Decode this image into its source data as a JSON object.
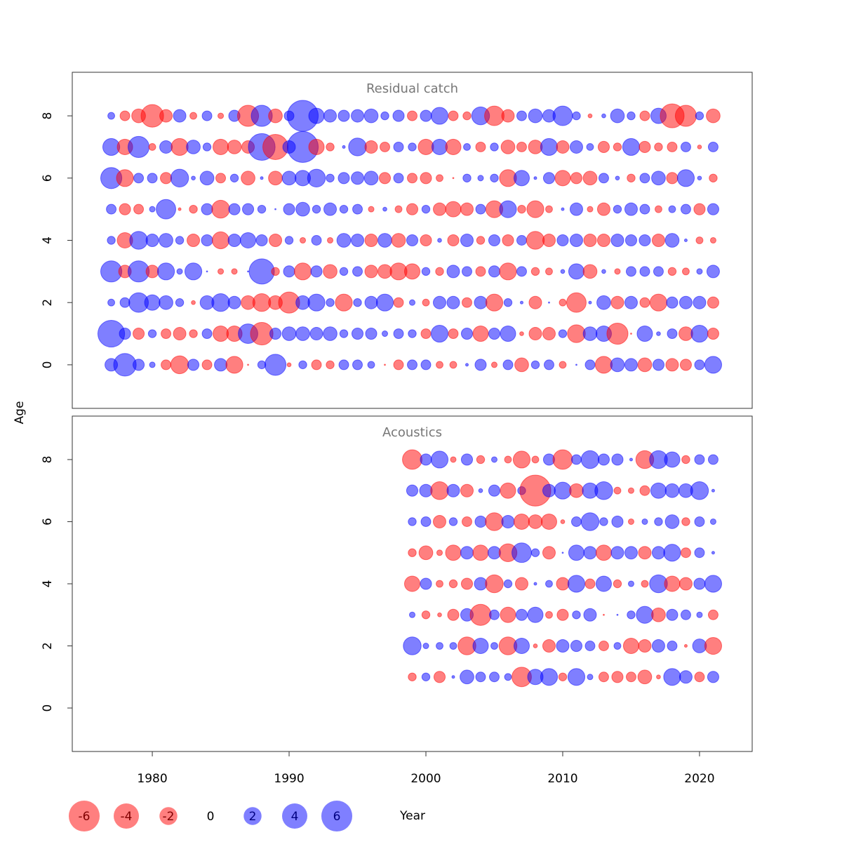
{
  "chart_data": [
    {
      "type": "bubble",
      "title": "Residual catch",
      "ylabel": "Age",
      "xlim": [
        1974.15,
        2023.85
      ],
      "ylim": [
        -1.4,
        9.4
      ],
      "yticks": [
        0,
        2,
        4,
        6,
        8
      ],
      "colors": {
        "negative": "#ff0000",
        "positive": "#0000ff"
      },
      "opacity": 0.5,
      "years": [
        1977,
        1978,
        1979,
        1980,
        1981,
        1982,
        1983,
        1984,
        1985,
        1986,
        1987,
        1988,
        1989,
        1990,
        1991,
        1992,
        1993,
        1994,
        1995,
        1996,
        1997,
        1998,
        1999,
        2000,
        2001,
        2002,
        2003,
        2004,
        2005,
        2006,
        2007,
        2008,
        2009,
        2010,
        2011,
        2012,
        2013,
        2014,
        2015,
        2016,
        2017,
        2018,
        2019,
        2020,
        2021
      ],
      "ages": [
        0,
        1,
        2,
        3,
        4,
        5,
        6,
        7,
        8
      ],
      "values": [
        [
          1,
          3.2,
          0.8,
          0.2,
          -0.6,
          -2,
          0.8,
          -0.6,
          1,
          -1.8,
          -0.01,
          0.4,
          2.8,
          -0.1,
          0.4,
          -0.6,
          -0.4,
          0.6,
          0.6,
          0.3,
          -0.01,
          -0.6,
          0.6,
          0.6,
          -0.3,
          -0.3,
          0.05,
          0.8,
          -0.2,
          0.6,
          -1.2,
          0.4,
          0.6,
          -0.3,
          0.01,
          0.6,
          -1.8,
          1.2,
          1,
          -1.2,
          0.8,
          -1,
          -0.8,
          0.6,
          1.8
        ],
        [
          4.5,
          0.8,
          -0.8,
          0.4,
          -0.6,
          -1,
          -0.4,
          0.6,
          -1.5,
          -1.5,
          2.4,
          -3.2,
          0.8,
          1.2,
          1.2,
          1,
          1.2,
          0.4,
          0.8,
          0.8,
          0.2,
          0.6,
          0.4,
          -0.6,
          1.8,
          -0.6,
          0.8,
          -1.5,
          0.8,
          1.5,
          -0.1,
          -1,
          -1,
          0.4,
          -2,
          1.2,
          1.5,
          -2.8,
          -0.01,
          1.5,
          0.1,
          0.6,
          -1.2,
          1.8,
          -0.8
        ],
        [
          0.3,
          0.6,
          2.4,
          1.5,
          1.2,
          0.4,
          -0.1,
          1.2,
          2,
          1,
          -1.2,
          -2,
          -1.2,
          -2.8,
          1.2,
          1.8,
          0.4,
          -1.8,
          0.4,
          1,
          1.8,
          -0.6,
          0.2,
          -0.3,
          1,
          1,
          -0.6,
          1,
          -1.8,
          0.4,
          0.05,
          -1,
          0.01,
          -0.3,
          -2.4,
          0.05,
          1.2,
          -1,
          1,
          -0.6,
          -1.8,
          0.8,
          1,
          1,
          -0.8
        ],
        [
          2.8,
          -1,
          2.8,
          -1,
          1.8,
          0.2,
          1.8,
          0.01,
          -0.2,
          -0.2,
          0.01,
          4,
          -0.4,
          0.8,
          -1.8,
          0.8,
          -1.2,
          0.4,
          0.6,
          -1,
          -1.2,
          -1.8,
          -1.5,
          0.4,
          -0.4,
          1,
          0.6,
          -0.6,
          0.8,
          -1.8,
          0.6,
          -0.4,
          -0.3,
          0.1,
          1.5,
          -1.2,
          0.1,
          -0.2,
          0.6,
          0.6,
          0.6,
          -0.4,
          -0.3,
          0.2,
          1
        ],
        [
          0.4,
          -1.5,
          2,
          1,
          1.2,
          0.4,
          -1,
          0.8,
          -1.8,
          1,
          1.5,
          0.8,
          -1,
          0.4,
          -0.2,
          0.6,
          -0.2,
          1.2,
          1,
          -1,
          1.2,
          -1.2,
          0.8,
          -0.8,
          0.1,
          -0.8,
          1,
          -0.4,
          0.8,
          -0.8,
          0.6,
          -2,
          -1,
          0.8,
          1,
          -1,
          -1,
          1,
          0.8,
          0.8,
          -1,
          1.2,
          0.05,
          -0.3,
          -0.2
        ],
        [
          0.6,
          -0.8,
          -0.6,
          0.2,
          2.4,
          -0.05,
          -0.4,
          0.8,
          -2,
          0.8,
          0.8,
          0.4,
          0.01,
          0.8,
          1.2,
          0.4,
          1,
          0.4,
          0.6,
          -0.2,
          0.1,
          -0.3,
          -0.8,
          0.4,
          -1,
          -1.5,
          -1,
          0.6,
          -1.8,
          1.8,
          -0.4,
          -1.8,
          -0.3,
          0.05,
          1,
          -0.2,
          -1,
          0.4,
          1,
          0.6,
          -0.3,
          0.3,
          0.6,
          -0.8,
          0.8
        ],
        [
          2.8,
          -1.8,
          0.6,
          0.6,
          -0.8,
          2,
          0.1,
          1.2,
          -0.6,
          0.4,
          -1.2,
          0.05,
          -1.2,
          1.2,
          1.5,
          2,
          0.4,
          0.8,
          1,
          1.2,
          -0.8,
          0.6,
          -0.6,
          -0.8,
          -0.3,
          -0.01,
          0.4,
          0.2,
          0.4,
          -1.8,
          1.5,
          0.05,
          0.8,
          -1.5,
          -0.8,
          -1.2,
          0.6,
          0.1,
          -0.4,
          0.6,
          1.2,
          -0.8,
          1.8,
          0.1,
          -0.4
        ],
        [
          1.8,
          -1.5,
          2.8,
          -0.3,
          1,
          -1.8,
          1.2,
          0.4,
          -1.5,
          -1.2,
          -1,
          4.5,
          -4,
          1,
          6,
          -1.5,
          -0.4,
          0.05,
          2,
          -1,
          -0.6,
          0.6,
          0.4,
          -1.5,
          1.5,
          -1.5,
          0.3,
          -0.6,
          0.4,
          -1.2,
          -0.6,
          -1.2,
          1.8,
          -1,
          1,
          0.3,
          -0.8,
          -0.4,
          1.8,
          -0.8,
          -0.4,
          -0.6,
          0.6,
          -0.1,
          0.6
        ],
        [
          0.3,
          -0.6,
          -1.2,
          -3.2,
          -1,
          1,
          -0.3,
          0.6,
          -0.2,
          0.8,
          -2.8,
          2.8,
          -1.2,
          0.6,
          6,
          1.5,
          1,
          0.8,
          1,
          1.2,
          0.4,
          0.8,
          -0.6,
          0.8,
          1.8,
          -0.6,
          -0.4,
          2,
          -2.4,
          -1,
          0.6,
          1.2,
          1,
          2.4,
          0.4,
          -0.1,
          0.1,
          1.2,
          0.4,
          -0.6,
          1.5,
          -3.6,
          -2.8,
          0.4,
          -1.2
        ]
      ]
    },
    {
      "type": "bubble",
      "title": "Acoustics",
      "xlabel": "Year",
      "xlim": [
        1974.15,
        2023.85
      ],
      "xticks": [
        1980,
        1990,
        2000,
        2010,
        2020
      ],
      "ylim": [
        -1.4,
        9.4
      ],
      "yticks": [
        0,
        2,
        4,
        6,
        8
      ],
      "colors": {
        "negative": "#ff0000",
        "positive": "#0000ff"
      },
      "opacity": 0.5,
      "size_legend": [
        -6,
        -4,
        -2,
        0,
        2,
        4,
        6
      ],
      "years": [
        1999,
        2000,
        2001,
        2002,
        2003,
        2004,
        2005,
        2006,
        2007,
        2008,
        2009,
        2010,
        2011,
        2012,
        2013,
        2014,
        2015,
        2016,
        2017,
        2018,
        2019,
        2020,
        2021
      ],
      "ages": [
        1,
        2,
        3,
        4,
        5,
        6,
        7,
        8
      ],
      "values": [
        [
          -0.4,
          0.4,
          -0.8,
          0.05,
          1.2,
          0.6,
          0.6,
          0.3,
          -2.4,
          1.5,
          1.8,
          -0.4,
          1.8,
          0.2,
          -0.6,
          -0.8,
          -0.6,
          -1.2,
          -0.1,
          1.8,
          1,
          -0.6,
          0.8
        ],
        [
          2,
          0.2,
          0.3,
          0.3,
          -2,
          1.5,
          0.3,
          -2,
          1.5,
          -0.1,
          -1,
          1,
          0.8,
          0.6,
          -0.6,
          0.3,
          -1.5,
          -1,
          1,
          0.6,
          -0.05,
          1.2,
          -1.8
        ],
        [
          0.2,
          -0.4,
          -0.1,
          -0.8,
          1,
          -2.8,
          0.6,
          -1.5,
          0.8,
          1.5,
          -0.3,
          -0.8,
          0.4,
          1,
          -0.01,
          0.01,
          0.4,
          1.8,
          -1.2,
          0.8,
          0.6,
          0.2,
          -0.6
        ],
        [
          -1.5,
          0.8,
          -0.3,
          -0.4,
          -0.8,
          1,
          -2,
          0.4,
          -1,
          0.05,
          0.3,
          -1,
          1.8,
          -0.6,
          1.5,
          -0.4,
          0.2,
          -0.3,
          2,
          -1.5,
          -1,
          0.8,
          1.8
        ],
        [
          -0.4,
          -1.2,
          -0.2,
          -1.5,
          1,
          -1.5,
          1,
          -2,
          2.4,
          0.4,
          -1,
          0.01,
          1.5,
          1,
          -1.5,
          1,
          1,
          -1,
          1,
          1.8,
          -0.6,
          0.6,
          0.05
        ],
        [
          0.4,
          0.6,
          -1,
          0.4,
          -0.6,
          0.8,
          -2,
          1,
          -1.5,
          -1.2,
          -1.5,
          -0.1,
          0.6,
          2,
          0.4,
          0.8,
          -0.2,
          0.2,
          0.4,
          1.2,
          -0.4,
          0.6,
          0.2
        ],
        [
          0.8,
          1,
          -2,
          1,
          -1,
          0.1,
          0.8,
          -1.5,
          0.4,
          -6,
          1,
          1.8,
          -1.2,
          1.5,
          2,
          -0.3,
          -0.2,
          -0.6,
          1.5,
          1.2,
          1.2,
          2,
          0.05
        ],
        [
          -2.4,
          0.8,
          1.8,
          -0.2,
          0.8,
          -0.4,
          0.2,
          -0.3,
          -1.8,
          -0.3,
          0.8,
          -2.4,
          0.6,
          2,
          0.8,
          0.8,
          0.05,
          -2,
          2,
          1.5,
          -0.4,
          0.6,
          0.6
        ]
      ]
    }
  ]
}
